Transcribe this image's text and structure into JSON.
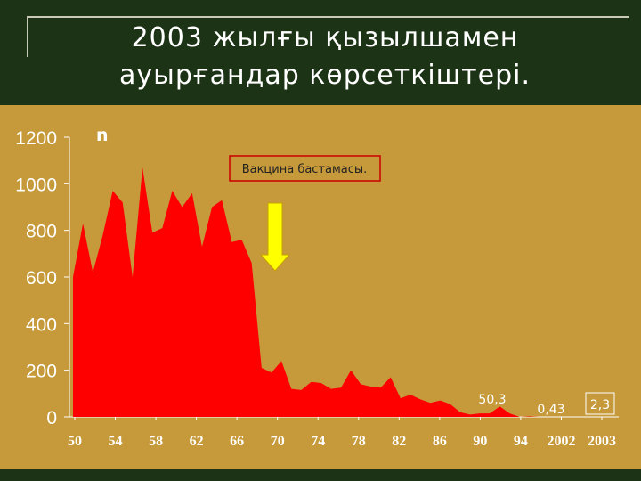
{
  "slide": {
    "title_line1": "2003 жылғы қызылшамен",
    "title_line2": "ауырғандар көрсеткіштері."
  },
  "colors": {
    "header_bg": "#1c3315",
    "panel_bg": "#c69a3a",
    "area_fill": "#ff0000",
    "arrow_fill": "#ffff00",
    "text": "#ffffff"
  },
  "chart_data": {
    "type": "area",
    "ylabel": "n",
    "ylim": [
      0,
      1200
    ],
    "yticks": [
      "0",
      "200",
      "400",
      "600",
      "800",
      "1000",
      "1200"
    ],
    "xticks": [
      "50",
      "54",
      "58",
      "62",
      "66",
      "70",
      "74",
      "78",
      "82",
      "86",
      "90",
      "94",
      "2002",
      "2003"
    ],
    "x": [
      1950,
      1951,
      1952,
      1953,
      1954,
      1955,
      1956,
      1957,
      1958,
      1959,
      1960,
      1961,
      1962,
      1963,
      1964,
      1965,
      1966,
      1967,
      1968,
      1969,
      1970,
      1971,
      1972,
      1973,
      1974,
      1975,
      1976,
      1977,
      1978,
      1979,
      1980,
      1981,
      1982,
      1983,
      1984,
      1985,
      1986,
      1987,
      1988,
      1989,
      1990,
      1991,
      1992,
      1993,
      1994,
      1995,
      1996,
      1997
    ],
    "values": [
      600,
      830,
      620,
      780,
      970,
      920,
      600,
      1070,
      790,
      810,
      970,
      900,
      960,
      730,
      900,
      930,
      750,
      760,
      660,
      210,
      190,
      240,
      120,
      115,
      150,
      145,
      120,
      125,
      200,
      140,
      130,
      125,
      170,
      80,
      95,
      75,
      60,
      70,
      55,
      20,
      10,
      15,
      15,
      45,
      15,
      0,
      2,
      0
    ],
    "annotations": [
      {
        "label": "50,3"
      },
      {
        "label": "0,43"
      },
      {
        "label": "2,3"
      }
    ],
    "vaccine_label": "Вакцина бастамасы."
  }
}
